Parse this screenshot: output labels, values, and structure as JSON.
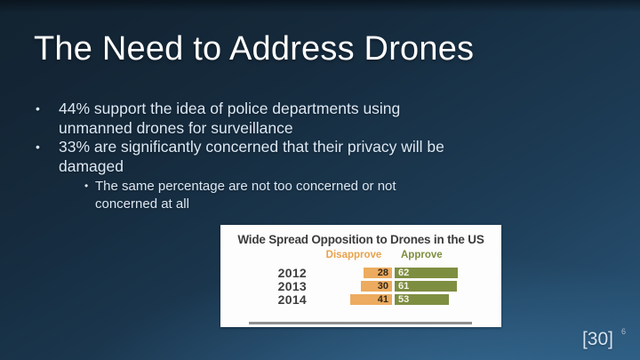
{
  "slide": {
    "title": "The Need to Address Drones",
    "bullets": [
      {
        "level": 1,
        "text": "44% support the idea of police departments using unmanned drones for surveillance"
      },
      {
        "level": 1,
        "text": "33% are significantly concerned that their privacy will be damaged"
      },
      {
        "level": 2,
        "text": "The same percentage are not too concerned or not concerned at all"
      }
    ],
    "citation": "[30]",
    "slide_number": "6"
  },
  "icons": {
    "bullet": "•"
  },
  "chart_data": {
    "type": "bar",
    "orientation": "horizontal-diverging",
    "title": "Wide Spread Opposition to Drones in the US",
    "categories": [
      "2012",
      "2013",
      "2014"
    ],
    "series": [
      {
        "name": "Disapprove",
        "values": [
          28,
          30,
          41
        ],
        "color": "#E8A24B",
        "bar_color": "#ECAB5F",
        "label_color": "#33291A"
      },
      {
        "name": "Approve",
        "values": [
          62,
          61,
          53
        ],
        "color": "#7D8D3E",
        "bar_color": "#7E8E41",
        "label_color": "#F5F3E8"
      }
    ],
    "legend_position": "top",
    "value_labels": "inside",
    "background": "#FDFDFD"
  }
}
